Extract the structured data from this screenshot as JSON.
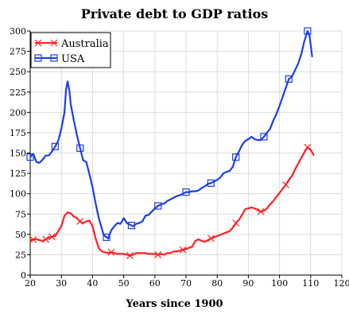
{
  "chart_data": {
    "type": "line",
    "title": "Private debt to GDP ratios",
    "xlabel": "Years since 1900",
    "ylabel": "",
    "xlim": [
      20,
      120
    ],
    "ylim": [
      0,
      300
    ],
    "x_ticks": [
      20,
      30,
      40,
      50,
      60,
      70,
      80,
      90,
      100,
      110,
      120
    ],
    "y_ticks": [
      0,
      25,
      50,
      75,
      100,
      125,
      150,
      175,
      200,
      225,
      250,
      275,
      300
    ],
    "grid": true,
    "legend": "top-left",
    "series": [
      {
        "name": "Australia",
        "color": "#ff2020",
        "marker": "x",
        "points": [
          [
            20,
            43
          ],
          [
            22,
            44
          ],
          [
            24,
            42
          ],
          [
            26,
            46
          ],
          [
            28,
            48
          ],
          [
            30,
            60
          ],
          [
            31,
            73
          ],
          [
            32,
            77
          ],
          [
            33,
            76
          ],
          [
            34,
            72
          ],
          [
            35,
            70
          ],
          [
            36,
            66
          ],
          [
            37,
            64
          ],
          [
            38,
            66
          ],
          [
            39,
            67
          ],
          [
            40,
            60
          ],
          [
            41,
            45
          ],
          [
            42,
            33
          ],
          [
            43,
            29
          ],
          [
            44,
            28
          ],
          [
            45,
            27
          ],
          [
            46,
            28
          ],
          [
            47,
            27
          ],
          [
            48,
            26
          ],
          [
            49,
            26
          ],
          [
            50,
            26
          ],
          [
            51,
            25
          ],
          [
            52,
            24
          ],
          [
            53,
            25
          ],
          [
            54,
            27
          ],
          [
            55,
            27
          ],
          [
            56,
            27
          ],
          [
            57,
            27
          ],
          [
            58,
            26
          ],
          [
            60,
            26
          ],
          [
            61,
            25
          ],
          [
            62,
            26
          ],
          [
            63,
            25
          ],
          [
            64,
            27
          ],
          [
            65,
            27
          ],
          [
            66,
            29
          ],
          [
            67,
            29
          ],
          [
            68,
            30
          ],
          [
            70,
            32
          ],
          [
            72,
            35
          ],
          [
            73,
            42
          ],
          [
            74,
            44
          ],
          [
            75,
            42
          ],
          [
            76,
            41
          ],
          [
            77,
            43
          ],
          [
            78,
            45
          ],
          [
            80,
            48
          ],
          [
            82,
            51
          ],
          [
            84,
            54
          ],
          [
            85,
            58
          ],
          [
            86,
            64
          ],
          [
            87,
            68
          ],
          [
            88,
            74
          ],
          [
            89,
            81
          ],
          [
            90,
            82
          ],
          [
            91,
            83
          ],
          [
            92,
            82
          ],
          [
            93,
            80
          ],
          [
            94,
            78
          ],
          [
            95,
            79
          ],
          [
            96,
            82
          ],
          [
            97,
            87
          ],
          [
            98,
            91
          ],
          [
            99,
            96
          ],
          [
            100,
            101
          ],
          [
            101,
            106
          ],
          [
            102,
            111
          ],
          [
            103,
            117
          ],
          [
            104,
            122
          ],
          [
            105,
            130
          ],
          [
            106,
            137
          ],
          [
            107,
            144
          ],
          [
            108,
            151
          ],
          [
            109,
            157
          ],
          [
            110,
            154
          ],
          [
            110.6,
            150
          ],
          [
            111,
            147
          ]
        ],
        "marker_x": [
          21,
          25,
          27,
          36,
          46,
          52,
          61,
          69,
          78,
          86,
          94,
          102,
          109
        ]
      },
      {
        "name": "USA",
        "color": "#1c3ee8",
        "marker": "square",
        "points": [
          [
            20,
            145
          ],
          [
            20.5,
            147
          ],
          [
            21,
            149
          ],
          [
            22,
            139
          ],
          [
            23,
            138
          ],
          [
            24,
            142
          ],
          [
            25,
            147
          ],
          [
            26,
            147
          ],
          [
            27,
            152
          ],
          [
            28,
            158
          ],
          [
            29,
            165
          ],
          [
            30,
            180
          ],
          [
            31,
            200
          ],
          [
            31.5,
            228
          ],
          [
            32,
            238
          ],
          [
            32.6,
            226
          ],
          [
            33,
            210
          ],
          [
            34,
            190
          ],
          [
            35,
            172
          ],
          [
            36,
            156
          ],
          [
            37,
            141
          ],
          [
            38,
            139
          ],
          [
            39,
            124
          ],
          [
            40,
            108
          ],
          [
            41,
            88
          ],
          [
            42,
            70
          ],
          [
            43,
            57
          ],
          [
            43.5,
            50
          ],
          [
            44,
            48
          ],
          [
            45,
            45
          ],
          [
            46,
            55
          ],
          [
            47,
            60
          ],
          [
            48,
            64
          ],
          [
            49,
            63
          ],
          [
            50,
            70
          ],
          [
            51,
            64
          ],
          [
            52,
            62
          ],
          [
            53,
            60
          ],
          [
            54,
            63
          ],
          [
            55,
            64
          ],
          [
            56,
            66
          ],
          [
            57,
            73
          ],
          [
            58,
            74
          ],
          [
            59,
            78
          ],
          [
            60,
            82
          ],
          [
            61,
            85
          ],
          [
            62,
            87
          ],
          [
            63,
            88
          ],
          [
            64,
            91
          ],
          [
            65,
            93
          ],
          [
            66,
            95
          ],
          [
            67,
            97
          ],
          [
            68,
            98
          ],
          [
            69,
            100
          ],
          [
            70,
            102
          ],
          [
            71,
            102
          ],
          [
            72,
            103
          ],
          [
            73,
            103
          ],
          [
            74,
            104
          ],
          [
            75,
            107
          ],
          [
            76,
            109
          ],
          [
            77,
            112
          ],
          [
            78,
            113
          ],
          [
            79,
            115
          ],
          [
            80,
            117
          ],
          [
            81,
            120
          ],
          [
            82,
            125
          ],
          [
            83,
            127
          ],
          [
            84,
            128
          ],
          [
            85,
            133
          ],
          [
            86,
            145
          ],
          [
            87,
            152
          ],
          [
            88,
            160
          ],
          [
            89,
            165
          ],
          [
            90,
            167
          ],
          [
            91,
            170
          ],
          [
            92,
            167
          ],
          [
            93,
            166
          ],
          [
            94,
            166
          ],
          [
            95,
            170
          ],
          [
            96,
            175
          ],
          [
            97,
            180
          ],
          [
            98,
            190
          ],
          [
            99,
            198
          ],
          [
            100,
            208
          ],
          [
            101,
            219
          ],
          [
            102,
            230
          ],
          [
            103,
            241
          ],
          [
            104,
            244
          ],
          [
            105,
            252
          ],
          [
            106,
            260
          ],
          [
            107,
            272
          ],
          [
            108,
            288
          ],
          [
            109,
            300
          ],
          [
            109.6,
            295
          ],
          [
            110,
            283
          ],
          [
            110.5,
            268
          ]
        ],
        "marker_x": [
          20,
          28,
          36,
          44.5,
          52.5,
          61,
          70,
          78,
          86,
          95,
          103,
          109
        ]
      }
    ]
  }
}
